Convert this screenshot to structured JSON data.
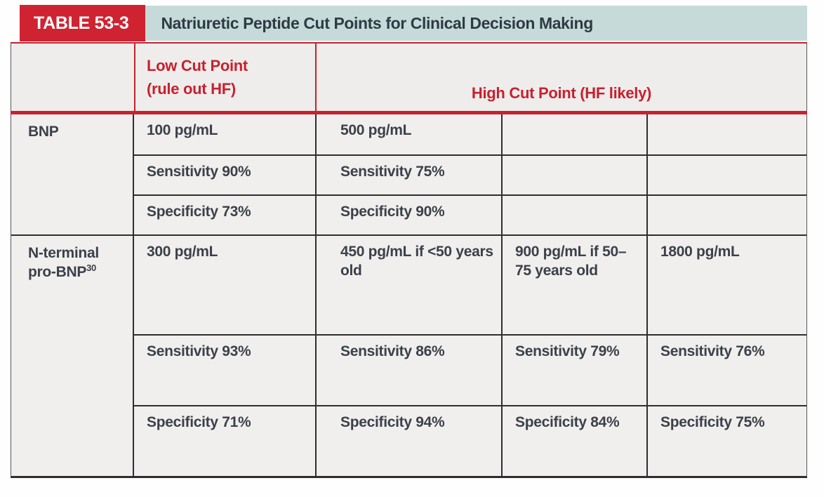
{
  "table": {
    "tag": "TABLE 53-3",
    "title": "Natriuretic Peptide Cut Points for Clinical Decision Making",
    "col_headers": {
      "low_line1": "Low Cut Point",
      "low_line2": "(rule out HF)",
      "high": "High Cut Point (HF likely)"
    },
    "sections": [
      {
        "name": "BNP",
        "rows": [
          [
            "100 pg/mL",
            "500 pg/mL",
            "",
            ""
          ],
          [
            "Sensitivity 90%",
            "Sensitivity 75%",
            "",
            ""
          ],
          [
            "Specificity 73%",
            "Specificity 90%",
            "",
            ""
          ]
        ]
      },
      {
        "name": "N-terminal pro-BNP",
        "name_sup": "30",
        "rows": [
          [
            "300 pg/mL",
            "450 pg/mL if <50 years old",
            "900 pg/mL if 50–75 years old",
            "1800 pg/mL"
          ],
          [
            "Sensitivity 93%",
            "Sensitivity 86%",
            "Sensitivity 79%",
            "Sensitivity 76%"
          ],
          [
            "Specificity 71%",
            "Specificity 94%",
            "Specificity 84%",
            "Specificity 75%"
          ]
        ]
      }
    ]
  },
  "colors": {
    "red": "#c8202f",
    "red_box": "#d02332",
    "teal_band": "#c6dbd9",
    "body_bg": "#f0efed",
    "text": "#3b404a",
    "border_black": "#2e2e30"
  }
}
